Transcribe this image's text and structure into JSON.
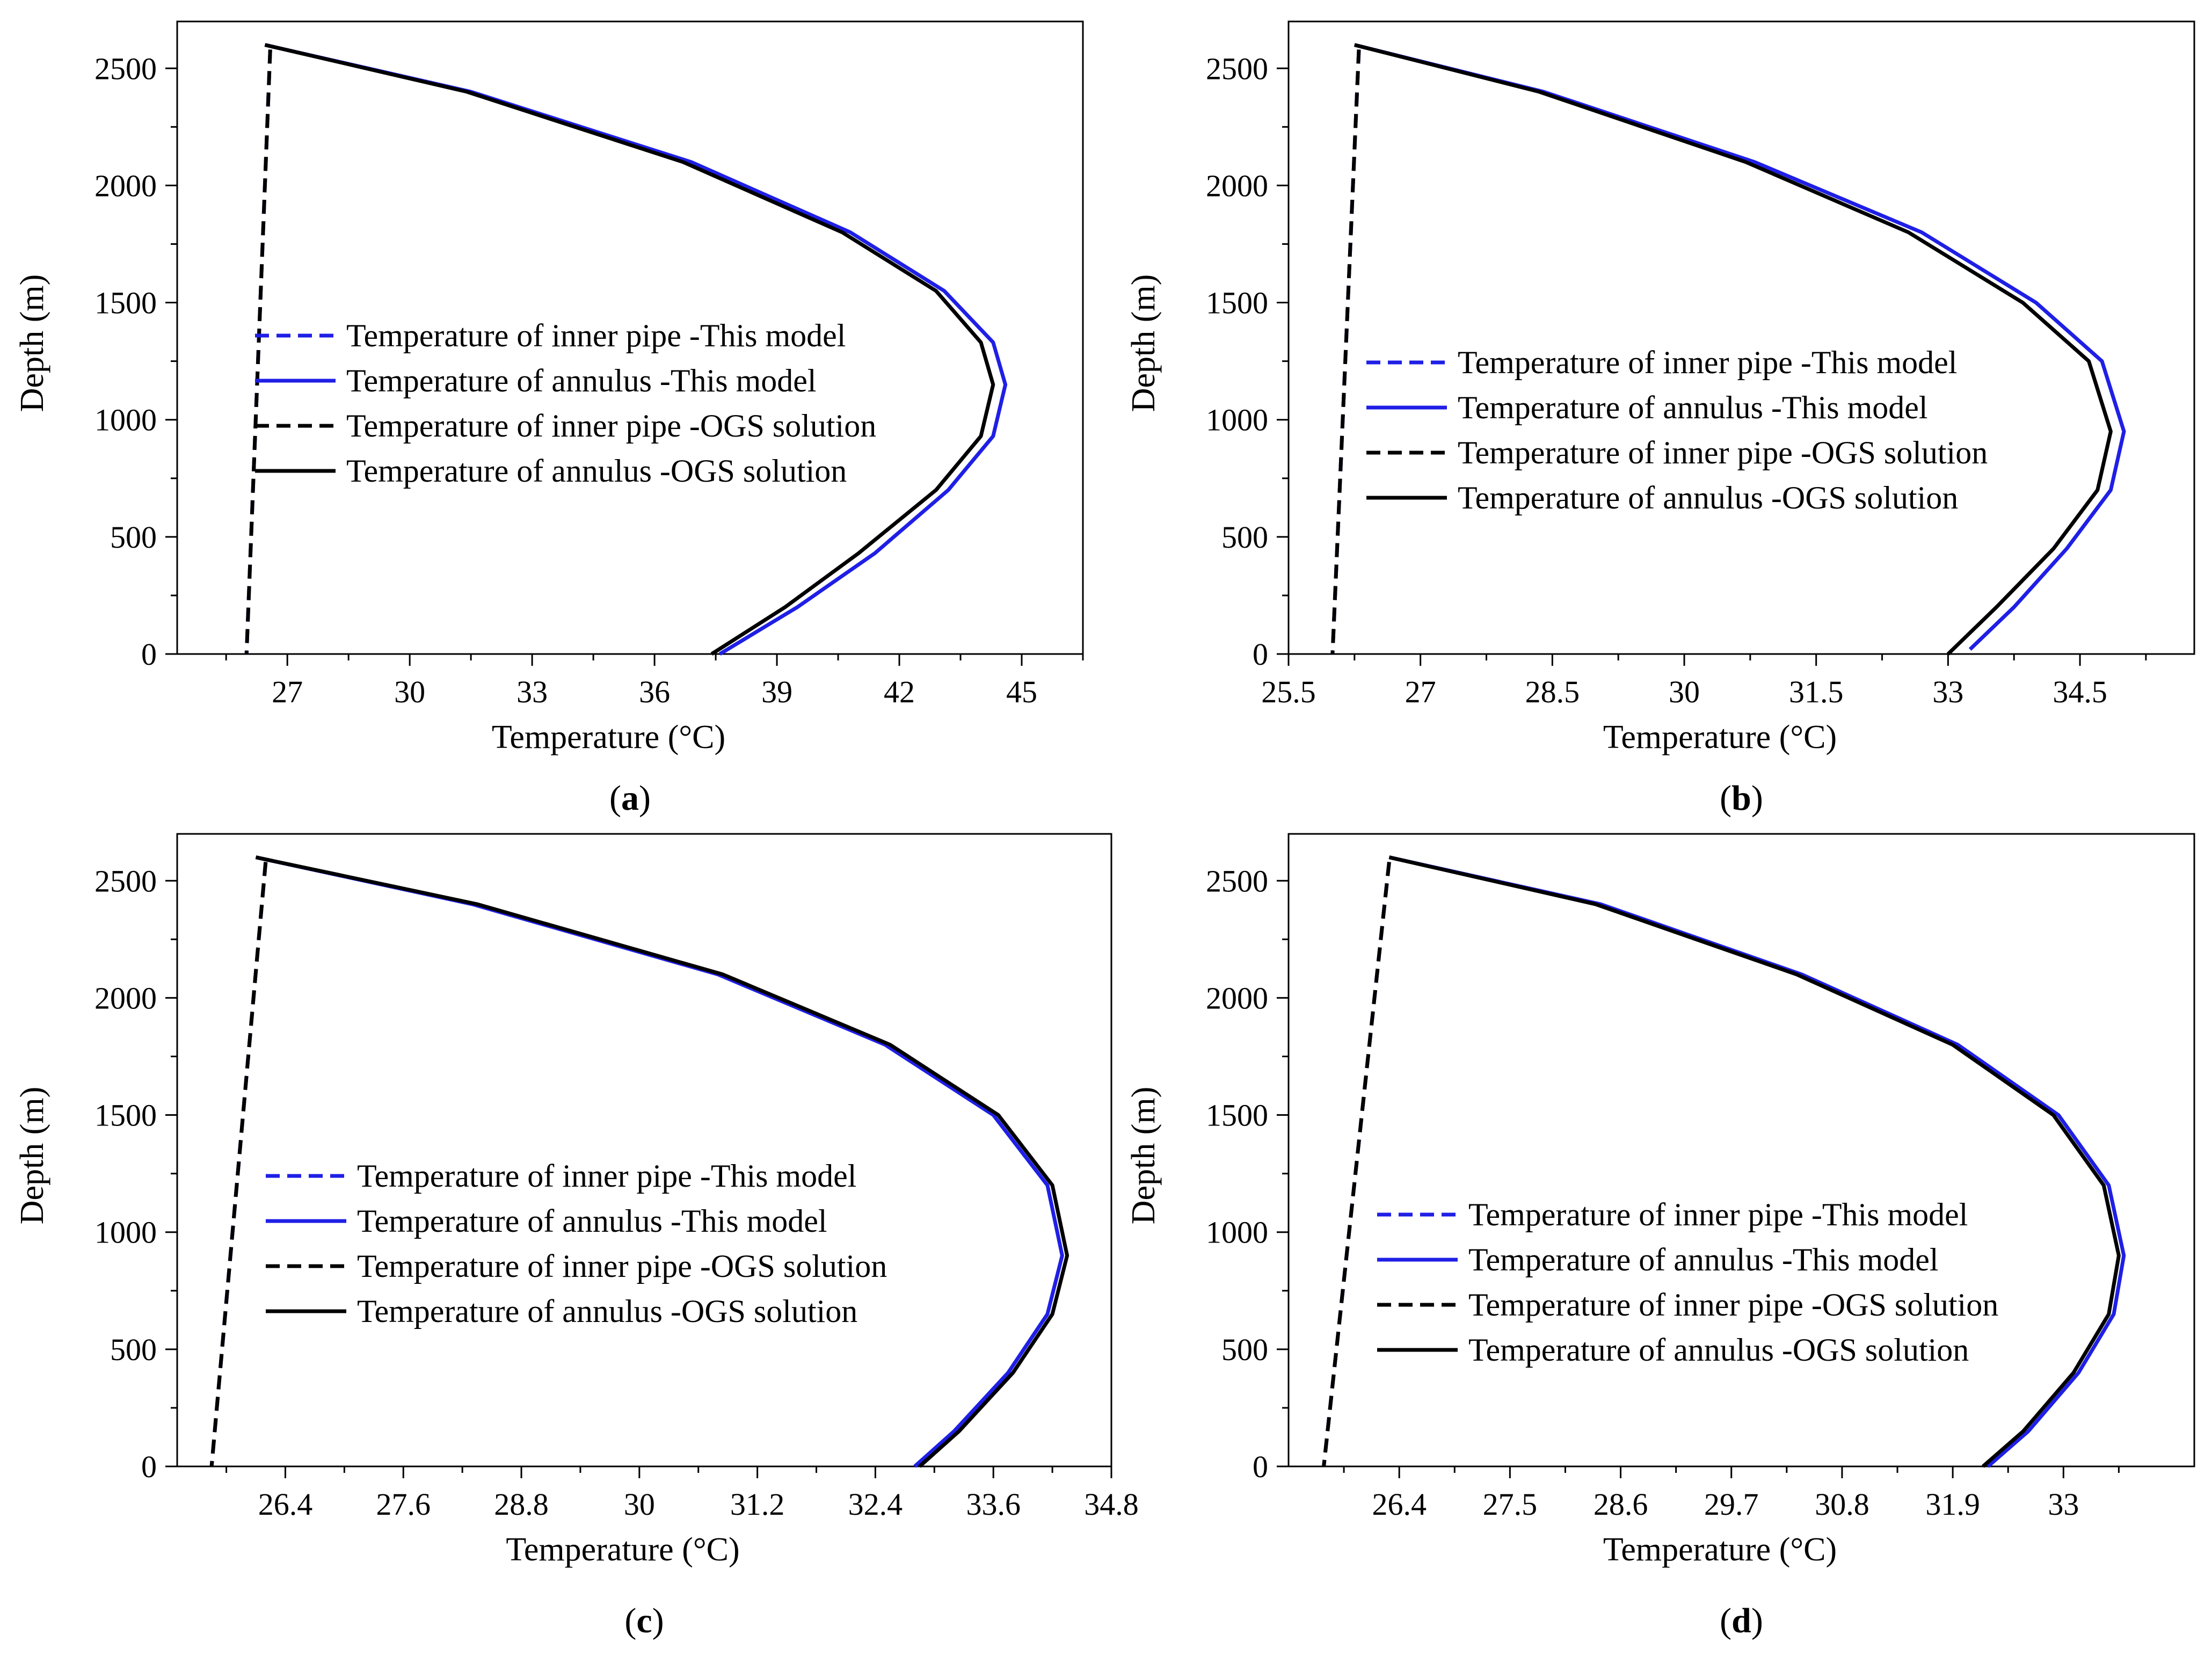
{
  "chart_data": [
    {
      "type": "line",
      "panel_label": "a",
      "xlabel": "Temperature  (°C)",
      "ylabel": "Depth (m)",
      "xlim": [
        24.3,
        46.5
      ],
      "ylim": [
        0,
        2700
      ],
      "xticks": [
        27,
        30,
        33,
        36,
        39,
        42,
        45
      ],
      "yticks": [
        0,
        500,
        1000,
        1500,
        2000,
        2500
      ],
      "legend": [
        "Temperature of inner pipe -This model",
        "Temperature of annulus -This model",
        "Temperature of inner pipe -OGS solution",
        "Temperature of annulus -OGS solution"
      ],
      "series": [
        {
          "name": "Temperature of inner pipe -This model",
          "color": "#1f1fe6",
          "dash": true,
          "x": [
            26.58,
            26.0
          ],
          "y": [
            2580,
            0
          ]
        },
        {
          "name": "Temperature of annulus -This model",
          "color": "#1f1fe6",
          "dash": false,
          "x": [
            26.45,
            31.5,
            36.9,
            40.8,
            43.1,
            44.3,
            44.6,
            44.3,
            43.2,
            41.4,
            39.5,
            37.6
          ],
          "y": [
            2600,
            2400,
            2100,
            1800,
            1550,
            1330,
            1150,
            930,
            700,
            430,
            200,
            0
          ]
        },
        {
          "name": "Temperature of inner pipe -OGS solution",
          "color": "#000000",
          "dash": true,
          "x": [
            26.58,
            26.0
          ],
          "y": [
            2580,
            0
          ]
        },
        {
          "name": "Temperature of annulus -OGS solution",
          "color": "#000000",
          "dash": false,
          "x": [
            26.45,
            31.4,
            36.7,
            40.6,
            42.9,
            44.0,
            44.3,
            44.0,
            42.9,
            41.0,
            39.2,
            37.4
          ],
          "y": [
            2600,
            2400,
            2100,
            1800,
            1550,
            1330,
            1150,
            930,
            700,
            430,
            200,
            0
          ]
        }
      ]
    },
    {
      "type": "line",
      "panel_label": "b",
      "xlabel": "Temperature  (°C)",
      "ylabel": "Depth (m)",
      "xlim": [
        25.5,
        35.8
      ],
      "ylim": [
        0,
        2700
      ],
      "xticks": [
        25.5,
        27,
        28.5,
        30,
        31.5,
        33,
        34.5
      ],
      "yticks": [
        0,
        500,
        1000,
        1500,
        2000,
        2500
      ],
      "legend": [
        "Temperature of inner pipe -This model",
        "Temperature of annulus -This model",
        "Temperature of inner pipe -OGS solution",
        "Temperature of annulus -OGS solution"
      ],
      "series": [
        {
          "name": "Temperature of inner pipe -This model",
          "color": "#1f1fe6",
          "dash": true,
          "x": [
            26.3,
            26.0
          ],
          "y": [
            2580,
            0
          ]
        },
        {
          "name": "Temperature of annulus -This model",
          "color": "#1f1fe6",
          "dash": false,
          "x": [
            26.25,
            28.4,
            30.8,
            32.7,
            34.0,
            34.75,
            35.0,
            34.85,
            34.35,
            33.75,
            33.25
          ],
          "y": [
            2600,
            2400,
            2100,
            1800,
            1500,
            1250,
            950,
            700,
            450,
            200,
            20
          ]
        },
        {
          "name": "Temperature of inner pipe -OGS solution",
          "color": "#000000",
          "dash": true,
          "x": [
            26.3,
            26.0
          ],
          "y": [
            2580,
            0
          ]
        },
        {
          "name": "Temperature of annulus -OGS solution",
          "color": "#000000",
          "dash": false,
          "x": [
            26.25,
            28.35,
            30.7,
            32.55,
            33.85,
            34.6,
            34.85,
            34.7,
            34.2,
            33.55,
            33.0
          ],
          "y": [
            2600,
            2400,
            2100,
            1800,
            1500,
            1250,
            950,
            700,
            450,
            200,
            0
          ]
        }
      ]
    },
    {
      "type": "line",
      "panel_label": "c",
      "xlabel": "Temperature  (°C)",
      "ylabel": "Depth (m)",
      "xlim": [
        25.3,
        34.8
      ],
      "ylim": [
        0,
        2700
      ],
      "xticks": [
        26.4,
        27.6,
        28.8,
        30,
        31.2,
        32.4,
        33.6,
        34.8
      ],
      "yticks": [
        0,
        500,
        1000,
        1500,
        2000,
        2500
      ],
      "legend": [
        "Temperature of inner pipe -This model",
        "Temperature of annulus -This model",
        "Temperature of inner pipe -OGS solution",
        "Temperature of annulus -OGS solution"
      ],
      "series": [
        {
          "name": "Temperature of inner pipe -This model",
          "color": "#1f1fe6",
          "dash": true,
          "x": [
            26.2,
            25.65
          ],
          "y": [
            2580,
            0
          ]
        },
        {
          "name": "Temperature of annulus -This model",
          "color": "#1f1fe6",
          "dash": false,
          "x": [
            26.1,
            28.3,
            30.8,
            32.5,
            33.6,
            34.15,
            34.3,
            34.15,
            33.75,
            33.2,
            32.8
          ],
          "y": [
            2600,
            2400,
            2100,
            1800,
            1500,
            1200,
            900,
            650,
            400,
            150,
            0
          ]
        },
        {
          "name": "Temperature of inner pipe -OGS solution",
          "color": "#000000",
          "dash": true,
          "x": [
            26.2,
            25.65
          ],
          "y": [
            2580,
            0
          ]
        },
        {
          "name": "Temperature of annulus -OGS solution",
          "color": "#000000",
          "dash": false,
          "x": [
            26.1,
            28.35,
            30.85,
            32.55,
            33.65,
            34.2,
            34.35,
            34.2,
            33.8,
            33.25,
            32.85
          ],
          "y": [
            2600,
            2400,
            2100,
            1800,
            1500,
            1200,
            900,
            650,
            400,
            150,
            0
          ]
        }
      ]
    },
    {
      "type": "line",
      "panel_label": "d",
      "xlabel": "Temperature  (°C)",
      "ylabel": "Depth (m)",
      "xlim": [
        25.3,
        34.3
      ],
      "ylim": [
        0,
        2700
      ],
      "xticks": [
        26.4,
        27.5,
        28.6,
        29.7,
        30.8,
        31.9,
        33
      ],
      "yticks": [
        0,
        500,
        1000,
        1500,
        2000,
        2500
      ],
      "legend": [
        "Temperature of inner pipe -This model",
        "Temperature of annulus -This model",
        "Temperature of inner pipe -OGS solution",
        "Temperature of annulus -OGS solution"
      ],
      "series": [
        {
          "name": "Temperature of inner pipe -This model",
          "color": "#1f1fe6",
          "dash": true,
          "x": [
            26.3,
            25.65
          ],
          "y": [
            2580,
            0
          ]
        },
        {
          "name": "Temperature of annulus -This model",
          "color": "#1f1fe6",
          "dash": false,
          "x": [
            26.3,
            28.4,
            30.4,
            31.95,
            32.95,
            33.45,
            33.6,
            33.5,
            33.15,
            32.65,
            32.25
          ],
          "y": [
            2600,
            2400,
            2100,
            1800,
            1500,
            1200,
            900,
            650,
            400,
            150,
            0
          ]
        },
        {
          "name": "Temperature of inner pipe -OGS solution",
          "color": "#000000",
          "dash": true,
          "x": [
            26.3,
            25.65
          ],
          "y": [
            2580,
            0
          ]
        },
        {
          "name": "Temperature of annulus -OGS solution",
          "color": "#000000",
          "dash": false,
          "x": [
            26.3,
            28.35,
            30.35,
            31.9,
            32.9,
            33.4,
            33.55,
            33.45,
            33.1,
            32.6,
            32.2
          ],
          "y": [
            2600,
            2400,
            2100,
            1800,
            1500,
            1200,
            900,
            650,
            400,
            150,
            0
          ]
        }
      ]
    }
  ]
}
